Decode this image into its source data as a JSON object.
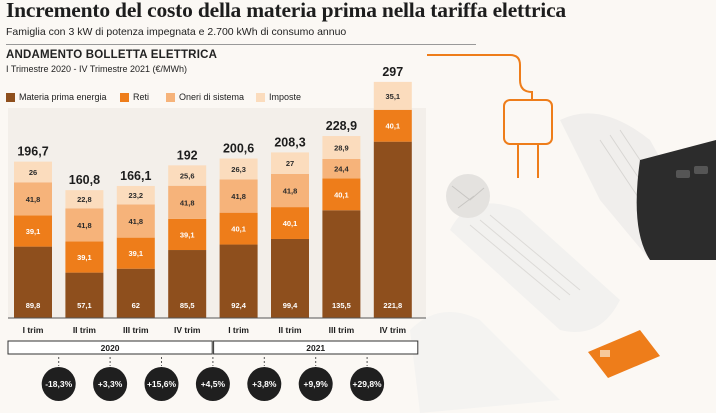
{
  "header": {
    "title": "Incremento del costo della materia prima nella tariffa elettrica",
    "subtitle": "Famiglia con 3 kW di potenza impegnata e 2.700 kWh di consumo annuo"
  },
  "chart_data": {
    "type": "bar",
    "stacked": true,
    "title": "ANDAMENTO BOLLETTA ELETTRICA",
    "subtitle": "I Trimestre 2020 - IV Trimestre 2021 (€/MWh)",
    "categories": [
      "I trim",
      "II trim",
      "III trim",
      "IV trim",
      "I trim",
      "II trim",
      "III trim",
      "IV trim"
    ],
    "years": [
      {
        "label": "2020",
        "from": 0,
        "to": 3
      },
      {
        "label": "2021",
        "from": 4,
        "to": 7
      }
    ],
    "series": [
      {
        "name": "Materia prima energia",
        "color": "#8e4f1d",
        "values": [
          89.8,
          57.1,
          62,
          85.5,
          92.4,
          99.4,
          135.5,
          221.8
        ],
        "labels": [
          "89,8",
          "57,1",
          "62",
          "85,5",
          "92,4",
          "99,4",
          "135,5",
          "221,8"
        ]
      },
      {
        "name": "Reti",
        "color": "#ee7d1a",
        "values": [
          39.1,
          39.1,
          39.1,
          39.1,
          40.1,
          40.1,
          40.1,
          40.1
        ],
        "labels": [
          "39,1",
          "39,1",
          "39,1",
          "39,1",
          "40,1",
          "40,1",
          "40,1",
          "40,1"
        ]
      },
      {
        "name": "Oneri di sistema",
        "color": "#f6b37a",
        "values": [
          41.8,
          41.8,
          41.8,
          41.8,
          41.8,
          41.8,
          24.4,
          0
        ],
        "labels": [
          "41,8",
          "41,8",
          "41,8",
          "41,8",
          "41,8",
          "41,8",
          "24,4",
          ""
        ]
      },
      {
        "name": "Imposte",
        "color": "#fbdcbd",
        "values": [
          26,
          22.8,
          23.2,
          25.6,
          26.3,
          27,
          28.9,
          35.1
        ],
        "labels": [
          "26",
          "22,8",
          "23,2",
          "25,6",
          "26,3",
          "27",
          "28,9",
          "35,1"
        ]
      }
    ],
    "totals": [
      196.7,
      160.8,
      166.1,
      192,
      200.6,
      208.3,
      228.9,
      297
    ],
    "total_labels": [
      "196,7",
      "160,8",
      "166,1",
      "192",
      "200,6",
      "208,3",
      "228,9",
      "297"
    ],
    "changes": [
      "-18,3%",
      "+3,3%",
      "+15,6%",
      "+4,5%",
      "+3,8%",
      "+9,9%",
      "+29,8%"
    ],
    "ylim": [
      0,
      300
    ],
    "grid": false
  }
}
